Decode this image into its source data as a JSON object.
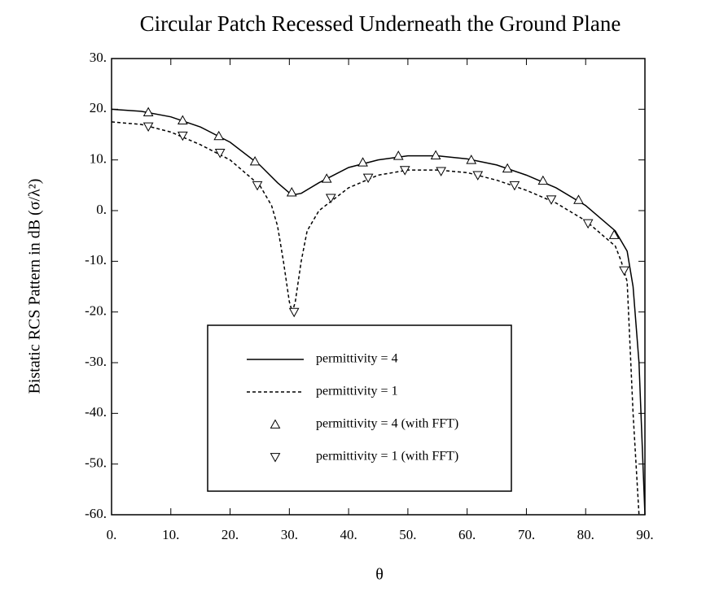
{
  "chart_data": {
    "type": "line",
    "title": "Circular Patch Recessed Underneath the Ground Plane",
    "x_label": "θ",
    "y_label": "Bistatic RCS Pattern in dB (σ/λ²)",
    "xlim": [
      0,
      90
    ],
    "ylim": [
      -60,
      30
    ],
    "xticks": [
      {
        "value": 0,
        "label": "0."
      },
      {
        "value": 10,
        "label": "10."
      },
      {
        "value": 20,
        "label": "20."
      },
      {
        "value": 30,
        "label": "30."
      },
      {
        "value": 40,
        "label": "40."
      },
      {
        "value": 50,
        "label": "50."
      },
      {
        "value": 60,
        "label": "60."
      },
      {
        "value": 70,
        "label": "70."
      },
      {
        "value": 80,
        "label": "80."
      },
      {
        "value": 90,
        "label": "90."
      }
    ],
    "yticks": [
      {
        "value": -60,
        "label": "-60."
      },
      {
        "value": -50,
        "label": "-50."
      },
      {
        "value": -40,
        "label": "-40."
      },
      {
        "value": -30,
        "label": "-30."
      },
      {
        "value": -20,
        "label": "-20."
      },
      {
        "value": -10,
        "label": "-10."
      },
      {
        "value": 0,
        "label": "0."
      },
      {
        "value": 10,
        "label": "10."
      },
      {
        "value": 20,
        "label": "20."
      },
      {
        "value": 30,
        "label": "30."
      }
    ],
    "legend": "lower center",
    "series": [
      {
        "name": "permittivity = 4",
        "color": "#000000",
        "line_style": "solid",
        "x": [
          0,
          5,
          10,
          15,
          20,
          25,
          28,
          30,
          31,
          32,
          35,
          40,
          45,
          50,
          55,
          60,
          65,
          70,
          75,
          80,
          85,
          87,
          88,
          89,
          90
        ],
        "values": [
          20,
          19.6,
          18.5,
          16.5,
          13.5,
          9,
          5.5,
          3.5,
          3.2,
          3.4,
          5.5,
          8.5,
          10,
          10.8,
          10.8,
          10.2,
          9,
          7,
          4.5,
          1,
          -4,
          -8,
          -15,
          -30,
          -60
        ]
      },
      {
        "name": "permittivity = 1",
        "color": "#000000",
        "line_style": "dashed",
        "x": [
          0,
          5,
          10,
          15,
          20,
          25,
          27,
          28,
          29,
          30,
          30.5,
          31,
          32,
          33,
          35,
          40,
          45,
          50,
          55,
          60,
          65,
          70,
          75,
          80,
          85,
          86,
          87,
          88,
          89
        ],
        "values": [
          17.5,
          17,
          15.5,
          13,
          10,
          5,
          1,
          -3,
          -10,
          -18,
          -20,
          -18,
          -10,
          -4,
          0,
          4.5,
          7,
          8,
          8,
          7.5,
          6,
          4,
          1.5,
          -2,
          -7,
          -10,
          -14,
          -40,
          -60
        ]
      },
      {
        "name": "permittivity = 4 (with FFT)",
        "color": "#000000",
        "marker": "triangle-up",
        "x": [
          6.2,
          12,
          18.1,
          24.2,
          30.4,
          36.3,
          42.4,
          48.4,
          54.7,
          60.7,
          66.8,
          72.8,
          78.8,
          84.8
        ],
        "values": [
          19.4,
          17.8,
          14.7,
          9.7,
          3.6,
          6.3,
          9.5,
          10.8,
          10.9,
          10,
          8.3,
          5.9,
          2.1,
          -4.8
        ]
      },
      {
        "name": "permittivity = 1 (with FFT)",
        "color": "#000000",
        "marker": "triangle-down",
        "x": [
          6.2,
          12,
          18.3,
          24.6,
          30.8,
          37,
          43.3,
          49.5,
          55.6,
          61.8,
          68,
          74.2,
          80.4,
          86.5
        ],
        "values": [
          16.6,
          14.8,
          11.4,
          5,
          -20,
          2.5,
          6.5,
          8,
          7.8,
          7,
          5,
          2.2,
          -2.5,
          -11.8
        ]
      }
    ]
  }
}
